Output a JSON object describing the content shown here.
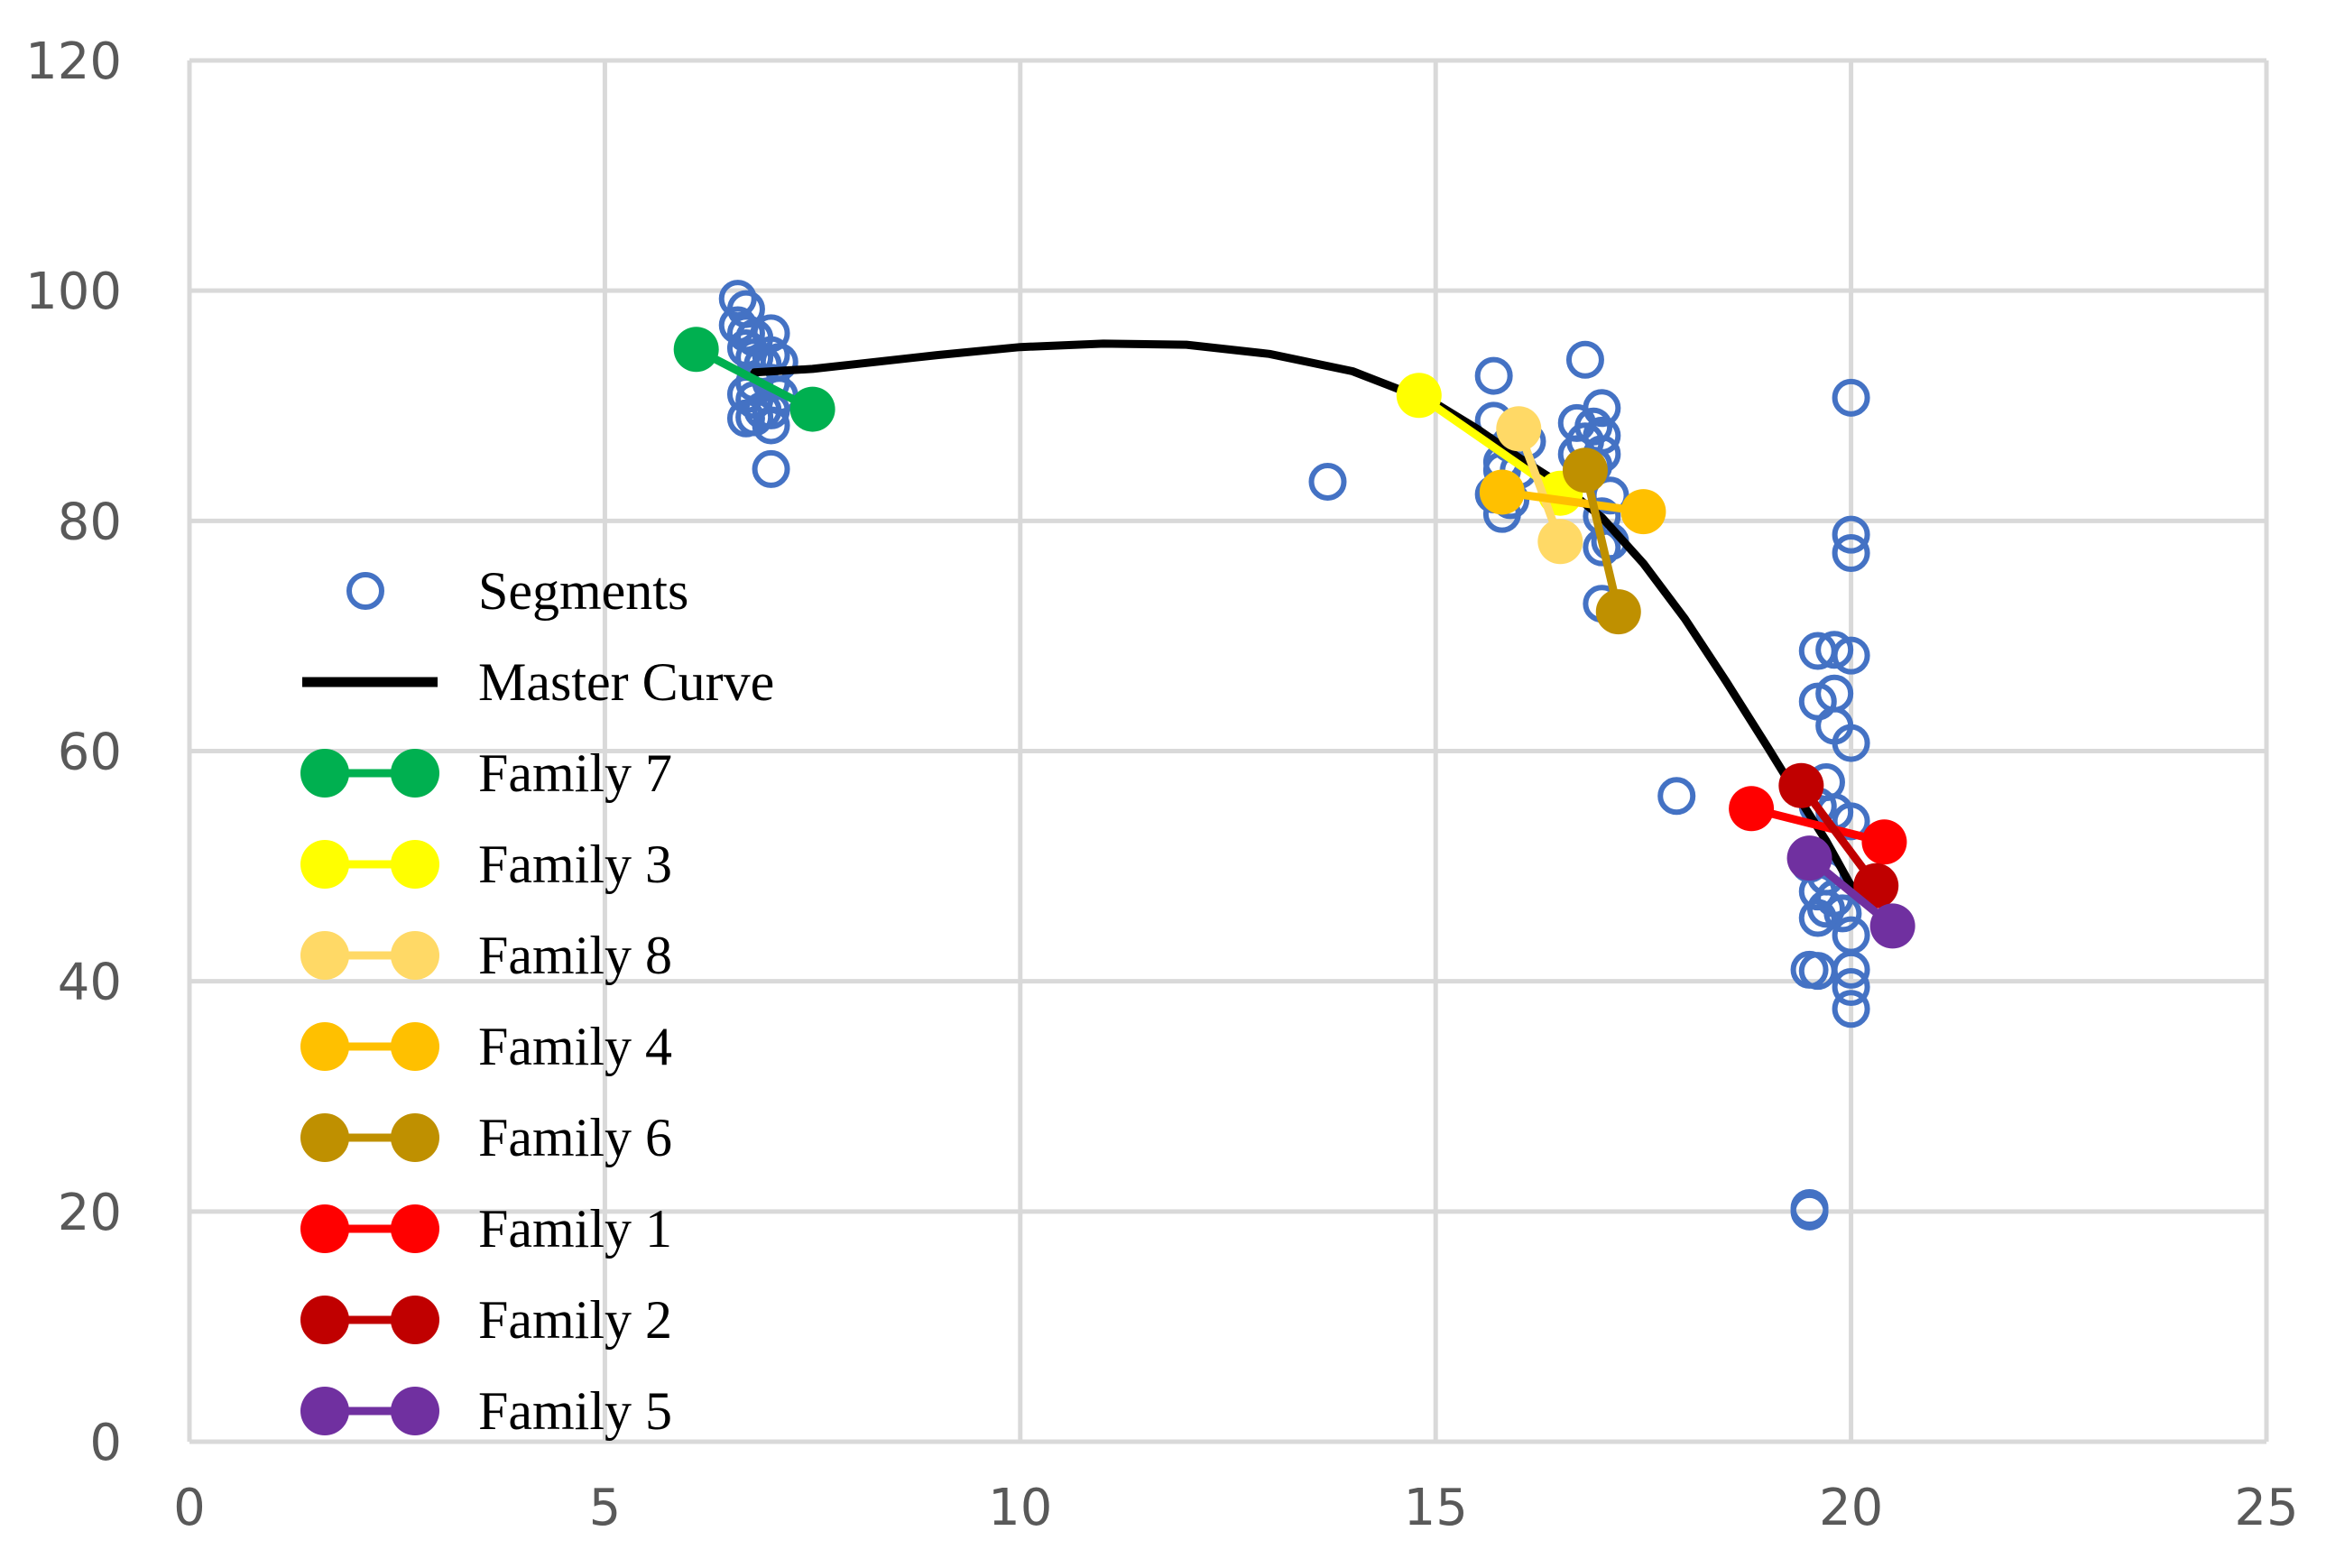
{
  "chart_data": {
    "type": "scatter",
    "title": "",
    "xlabel": "",
    "ylabel": "",
    "xlim": [
      0,
      25
    ],
    "ylim": [
      0,
      120
    ],
    "x_ticks": [
      "0",
      "5",
      "10",
      "15",
      "20",
      "25"
    ],
    "y_ticks": [
      "0",
      "20",
      "40",
      "60",
      "80",
      "100",
      "120"
    ],
    "grid": true,
    "legend_position": "left-center",
    "series": [
      {
        "name": "Segments",
        "kind": "scatter-open",
        "color": "#4472C4",
        "points": [
          [
            6.6,
            99.3
          ],
          [
            6.7,
            98.4
          ],
          [
            6.6,
            97.0
          ],
          [
            6.7,
            96.3
          ],
          [
            6.8,
            95.9
          ],
          [
            6.7,
            95.0
          ],
          [
            6.8,
            94.2
          ],
          [
            6.9,
            93.6
          ],
          [
            7.0,
            96.3
          ],
          [
            7.0,
            94.4
          ],
          [
            7.1,
            93.8
          ],
          [
            6.8,
            92.0
          ],
          [
            6.7,
            91.0
          ],
          [
            7.0,
            92.0
          ],
          [
            6.8,
            90.5
          ],
          [
            6.9,
            89.6
          ],
          [
            7.0,
            89.6
          ],
          [
            6.8,
            89.0
          ],
          [
            6.7,
            88.9
          ],
          [
            7.1,
            90.9
          ],
          [
            7.0,
            88.3
          ],
          [
            7.0,
            84.5
          ],
          [
            13.7,
            83.4
          ],
          [
            15.7,
            92.6
          ],
          [
            15.7,
            88.7
          ],
          [
            15.9,
            86.7
          ],
          [
            15.8,
            85.1
          ],
          [
            15.8,
            84.4
          ],
          [
            15.7,
            82.3
          ],
          [
            15.9,
            81.8
          ],
          [
            15.8,
            80.6
          ],
          [
            16.0,
            84.4
          ],
          [
            16.1,
            86.9
          ],
          [
            16.8,
            94.0
          ],
          [
            17.0,
            89.8
          ],
          [
            16.7,
            88.5
          ],
          [
            16.9,
            88.2
          ],
          [
            17.0,
            87.4
          ],
          [
            16.8,
            86.9
          ],
          [
            16.7,
            85.8
          ],
          [
            17.0,
            85.8
          ],
          [
            16.9,
            84.8
          ],
          [
            17.1,
            82.2
          ],
          [
            17.0,
            80.4
          ],
          [
            17.1,
            78.2
          ],
          [
            17.0,
            77.7
          ],
          [
            17.0,
            72.8
          ],
          [
            17.9,
            56.1
          ],
          [
            20.0,
            90.7
          ],
          [
            20.0,
            78.8
          ],
          [
            20.0,
            77.2
          ],
          [
            19.6,
            68.7
          ],
          [
            19.8,
            68.8
          ],
          [
            20.0,
            68.3
          ],
          [
            19.6,
            64.3
          ],
          [
            19.8,
            65.0
          ],
          [
            19.8,
            62.2
          ],
          [
            20.0,
            60.7
          ],
          [
            19.7,
            57.3
          ],
          [
            19.6,
            55.2
          ],
          [
            19.8,
            54.7
          ],
          [
            20.0,
            53.9
          ],
          [
            19.5,
            50.2
          ],
          [
            19.7,
            49.1
          ],
          [
            19.6,
            47.8
          ],
          [
            19.8,
            47.2
          ],
          [
            19.7,
            46.3
          ],
          [
            19.6,
            45.5
          ],
          [
            19.9,
            45.9
          ],
          [
            20.0,
            44.0
          ],
          [
            19.5,
            41.0
          ],
          [
            19.6,
            40.9
          ],
          [
            20.0,
            41.0
          ],
          [
            20.0,
            39.5
          ],
          [
            20.0,
            37.6
          ],
          [
            19.5,
            20.3
          ],
          [
            19.5,
            20.0
          ]
        ]
      },
      {
        "name": "Master Curve",
        "kind": "line",
        "color": "#000000",
        "points": [
          [
            6.8,
            92.9
          ],
          [
            7.5,
            93.2
          ],
          [
            8.0,
            93.6
          ],
          [
            9.0,
            94.4
          ],
          [
            10.0,
            95.1
          ],
          [
            11.0,
            95.4
          ],
          [
            12.0,
            95.3
          ],
          [
            13.0,
            94.5
          ],
          [
            14.0,
            93.0
          ],
          [
            15.0,
            90.2
          ],
          [
            15.5,
            88.0
          ],
          [
            16.0,
            85.5
          ],
          [
            16.5,
            83.2
          ],
          [
            17.0,
            80.3
          ],
          [
            17.5,
            76.3
          ],
          [
            18.0,
            71.5
          ],
          [
            18.5,
            66.0
          ],
          [
            19.0,
            60.3
          ],
          [
            19.4,
            55.6
          ],
          [
            19.7,
            52.2
          ],
          [
            20.0,
            48.3
          ]
        ]
      },
      {
        "name": "Family  7",
        "kind": "line-marker",
        "color": "#00B050",
        "points": [
          [
            6.1,
            94.9
          ],
          [
            7.5,
            89.7
          ]
        ]
      },
      {
        "name": "Family  3",
        "kind": "line-marker",
        "color": "#FFFF00",
        "points": [
          [
            14.8,
            90.9
          ],
          [
            16.5,
            82.4
          ]
        ]
      },
      {
        "name": "Family  8",
        "kind": "line-marker",
        "color": "#FFD966",
        "points": [
          [
            16.0,
            88.0
          ],
          [
            16.5,
            78.2
          ]
        ]
      },
      {
        "name": "Family  4",
        "kind": "line-marker",
        "color": "#FFC000",
        "points": [
          [
            15.8,
            82.5
          ],
          [
            17.5,
            80.8
          ]
        ]
      },
      {
        "name": "Family  6",
        "kind": "line-marker",
        "color": "#BF9000",
        "points": [
          [
            16.8,
            84.4
          ],
          [
            17.2,
            72.1
          ]
        ]
      },
      {
        "name": "Family  1",
        "kind": "line-marker",
        "color": "#FF0000",
        "points": [
          [
            18.8,
            55.0
          ],
          [
            20.4,
            52.1
          ]
        ]
      },
      {
        "name": "Family  2",
        "kind": "line-marker",
        "color": "#C00000",
        "points": [
          [
            19.4,
            57.0
          ],
          [
            20.3,
            48.3
          ]
        ]
      },
      {
        "name": "Family  5",
        "kind": "line-marker",
        "color": "#7030A0",
        "points": [
          [
            19.5,
            50.7
          ],
          [
            20.5,
            44.8
          ]
        ]
      }
    ]
  }
}
